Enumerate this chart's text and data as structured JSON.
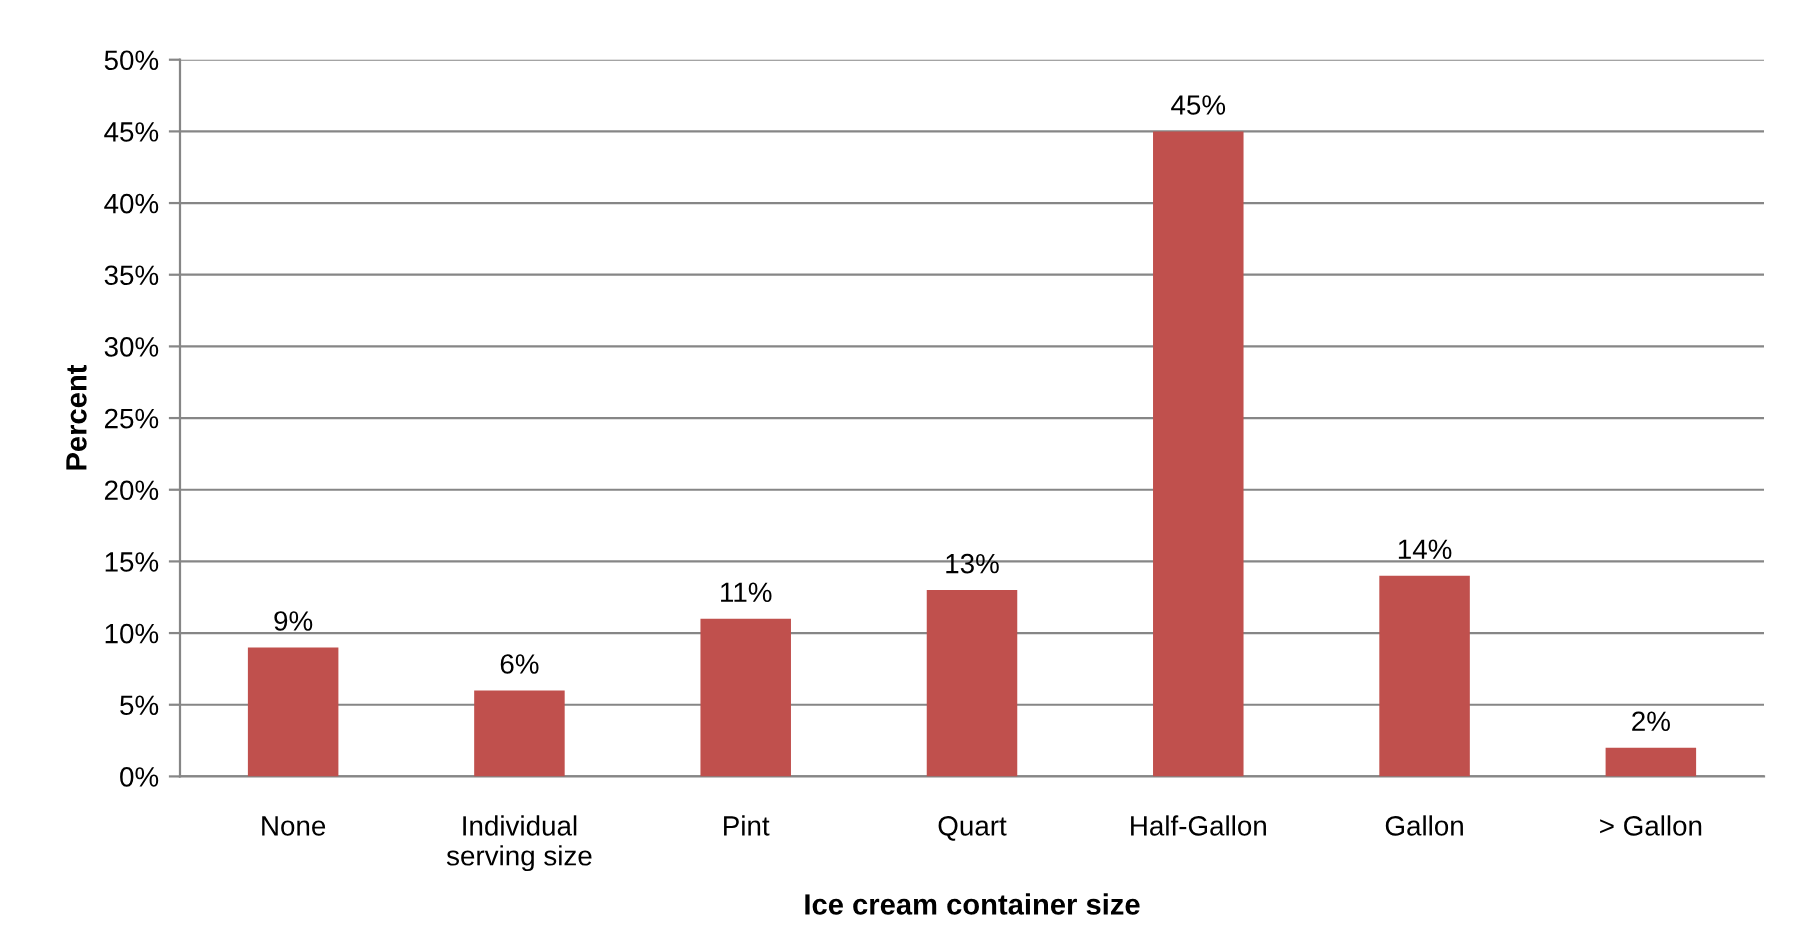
{
  "chart_data": {
    "type": "bar",
    "xlabel": "Ice cream container size",
    "ylabel": "Percent",
    "categories": [
      "None",
      "Individual\nserving size",
      "Pint",
      "Quart",
      "Half-Gallon",
      "Gallon",
      "> Gallon"
    ],
    "values": [
      9,
      6,
      11,
      13,
      45,
      14,
      2
    ],
    "value_labels": [
      "9%",
      "6%",
      "11%",
      "13%",
      "45%",
      "14%",
      "2%"
    ],
    "color": "#c0504d",
    "ylim": [
      0,
      50
    ],
    "yticks": [
      {
        "value": 0,
        "label": "0%"
      },
      {
        "value": 5,
        "label": "5%"
      },
      {
        "value": 10,
        "label": "10%"
      },
      {
        "value": 15,
        "label": "15%"
      },
      {
        "value": 20,
        "label": "20%"
      },
      {
        "value": 25,
        "label": "25%"
      },
      {
        "value": 30,
        "label": "30%"
      },
      {
        "value": 35,
        "label": "35%"
      },
      {
        "value": 40,
        "label": "40%"
      },
      {
        "value": 45,
        "label": "45%"
      },
      {
        "value": 50,
        "label": "50%"
      }
    ],
    "grid": "y"
  }
}
